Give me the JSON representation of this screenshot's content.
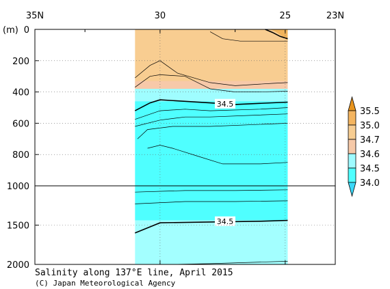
{
  "chart_data": {
    "type": "heatmap",
    "title": "Salinity along 137°E line, April 2015",
    "credit": "(C) Japan Meteorological Agency",
    "x_axis": {
      "ticks": [
        "35N",
        "30",
        "25",
        "23N"
      ],
      "tick_values": [
        35,
        30,
        25,
        23
      ],
      "range": [
        35,
        23
      ]
    },
    "y_axis": {
      "unit": "(m)",
      "ticks_upper": [
        "0",
        "200",
        "400",
        "600",
        "800",
        "1000"
      ],
      "ticks_upper_values": [
        0,
        200,
        400,
        600,
        800,
        1000
      ],
      "ticks_lower": [
        "1500",
        "2000"
      ],
      "ticks_lower_values": [
        1500,
        2000
      ],
      "split_depth": 1000
    },
    "data_extent_lat": [
      31.0,
      24.9
    ],
    "color_scale": {
      "levels": [
        "34.0",
        "34.5",
        "34.6",
        "34.7",
        "35.0",
        "35.5"
      ],
      "colors": [
        "#3ad8f8",
        "#4fffff",
        "#9ffbff",
        "#f6c9a8",
        "#f7cd92",
        "#f4b560",
        "#e8941e"
      ]
    },
    "fill_bands": [
      {
        "from_depth": 0,
        "to_depth": 390,
        "color": "#f8cd91"
      },
      {
        "from_depth": 330,
        "to_depth": 440,
        "color": "#f7c9a9"
      },
      {
        "from_depth": 380,
        "to_depth": 540,
        "color": "#9ffdff"
      },
      {
        "from_depth": 460,
        "to_depth": 1440,
        "color": "#4fffff"
      },
      {
        "from_depth": 1440,
        "to_depth": 2000,
        "color": "#a3ffff"
      }
    ],
    "contour_labels": [
      {
        "text": "34.5",
        "lat": 27.4,
        "depth": 475
      },
      {
        "text": "34.5",
        "lat": 27.4,
        "depth": 1450
      }
    ]
  }
}
